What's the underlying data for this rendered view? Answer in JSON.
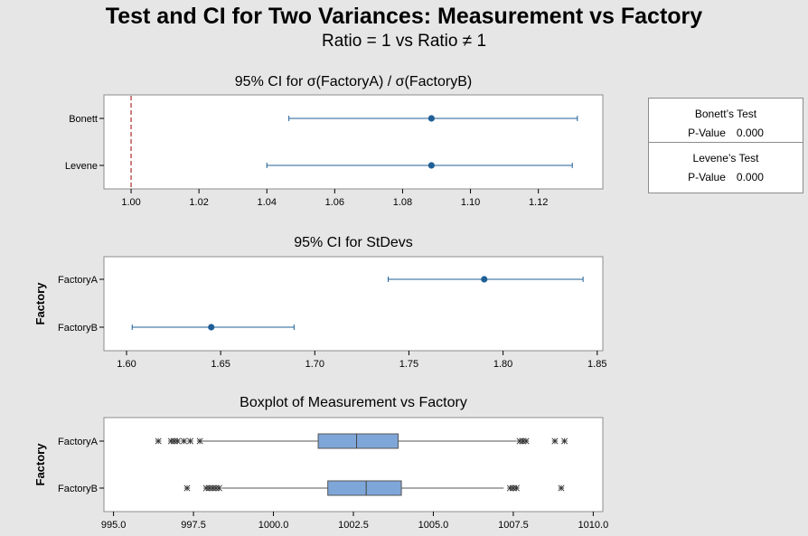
{
  "header": {
    "title": "Test and CI for Two Variances: Measurement vs Factory",
    "subtitle": "Ratio = 1 vs Ratio ≠ 1"
  },
  "tests": {
    "bonett": {
      "name": "Bonett’s Test",
      "pvalue_label": "P-Value",
      "pvalue": "0.000"
    },
    "levene": {
      "name": "Levene’s Test",
      "pvalue_label": "P-Value",
      "pvalue": "0.000"
    }
  },
  "colors": {
    "series": "#1f5f96",
    "reference_line": "#b02a2a",
    "box_fill": "#7fa6d8"
  },
  "chart_data": [
    {
      "type": "scatter",
      "title": "95% CI for σ(FactoryA) / σ(FactoryB)",
      "categories": [
        "Bonett",
        "Levene"
      ],
      "estimate": [
        1.0885,
        1.0885
      ],
      "lower": [
        1.0465,
        1.04
      ],
      "upper": [
        1.1315,
        1.13
      ],
      "reference": 1.0,
      "xlim": [
        0.992,
        1.139
      ],
      "ticks": [
        1.0,
        1.02,
        1.04,
        1.06,
        1.08,
        1.1,
        1.12
      ],
      "tick_labels": [
        "1.00",
        "1.02",
        "1.04",
        "1.06",
        "1.08",
        "1.10",
        "1.12"
      ],
      "ylabel": ""
    },
    {
      "type": "scatter",
      "title": "95% CI for StDevs",
      "categories": [
        "FactoryA",
        "FactoryB"
      ],
      "estimate": [
        1.79,
        1.645
      ],
      "lower": [
        1.739,
        1.603
      ],
      "upper": [
        1.8425,
        1.689
      ],
      "xlim": [
        1.588,
        1.853
      ],
      "ticks": [
        1.6,
        1.65,
        1.7,
        1.75,
        1.8,
        1.85
      ],
      "tick_labels": [
        "1.60",
        "1.65",
        "1.70",
        "1.75",
        "1.80",
        "1.85"
      ],
      "ylabel": "Factory"
    },
    {
      "type": "boxplot",
      "title": "Boxplot of Measurement vs Factory",
      "categories": [
        "FactoryA",
        "FactoryB"
      ],
      "whisker_low": [
        997.7,
        998.4
      ],
      "q1": [
        1001.4,
        1001.7
      ],
      "median": [
        1002.6,
        1002.9
      ],
      "q3": [
        1003.9,
        1004.0
      ],
      "whisker_high": [
        1007.6,
        1007.2
      ],
      "outliers": [
        [
          996.4,
          996.8,
          996.9,
          997.0,
          997.2,
          997.4,
          997.7,
          1007.7,
          1007.8,
          1007.9,
          1008.8,
          1009.1
        ],
        [
          997.3,
          997.9,
          998.0,
          998.1,
          998.2,
          998.3,
          1007.4,
          1007.5,
          1007.6,
          1009.0
        ]
      ],
      "xlim": [
        994.7,
        1010.3
      ],
      "ticks": [
        995.0,
        997.5,
        1000.0,
        1002.5,
        1005.0,
        1007.5,
        1010.0
      ],
      "tick_labels": [
        "995.0",
        "997.5",
        "1000.0",
        "1002.5",
        "1005.0",
        "1007.5",
        "1010.0"
      ],
      "ylabel": "Factory"
    }
  ]
}
